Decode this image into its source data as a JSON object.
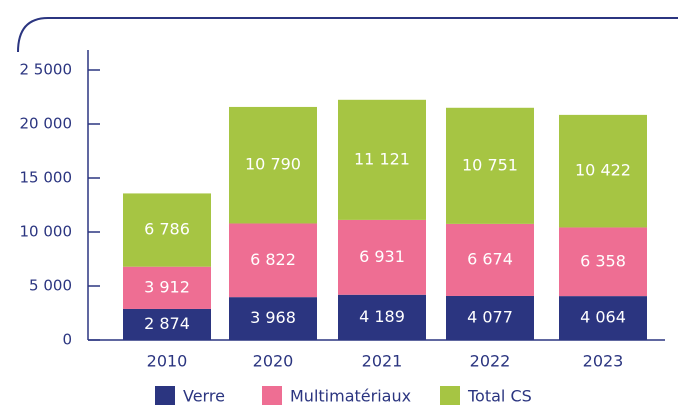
{
  "chart_data": {
    "type": "stacked-bar",
    "categories": [
      "2010",
      "2020",
      "2021",
      "2022",
      "2023"
    ],
    "series": [
      {
        "name": "Verre",
        "color": "#2b3580",
        "values": [
          2874,
          3968,
          4189,
          4077,
          4064
        ],
        "value_labels": [
          "2 874",
          "3 968",
          "4 189",
          "4 077",
          "4 064"
        ]
      },
      {
        "name": "Multimatériaux",
        "color": "#ee6e93",
        "values": [
          3912,
          6822,
          6931,
          6674,
          6358
        ],
        "value_labels": [
          "3 912",
          "6 822",
          "6 931",
          "6 674",
          "6 358"
        ]
      },
      {
        "name": "Total CS",
        "color": "#a6c543",
        "values": [
          6786,
          10790,
          11121,
          10751,
          10422
        ],
        "value_labels": [
          "6 786",
          "10 790",
          "11 121",
          "10 751",
          "10 422"
        ]
      }
    ],
    "ylim": [
      0,
      25000
    ],
    "yticks": [
      0,
      {
        "value": 5000,
        "label": "5 000"
      },
      {
        "value": 10000,
        "label": "10 000"
      },
      {
        "value": 15000,
        "label": "15 000"
      },
      {
        "value": 20000,
        "label": "20 000"
      },
      {
        "value": 25000,
        "label": "2 5000"
      }
    ]
  }
}
